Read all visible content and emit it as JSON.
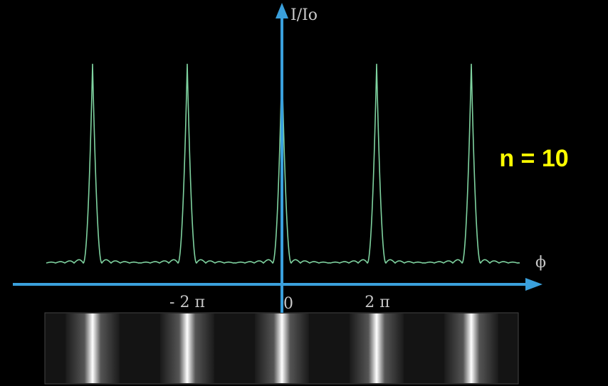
{
  "axes": {
    "y_label": "I/Io",
    "x_label": "ϕ",
    "x_ticks": [
      "- 2 π",
      "0",
      "2 π"
    ]
  },
  "annotation": "n = 10"
}
